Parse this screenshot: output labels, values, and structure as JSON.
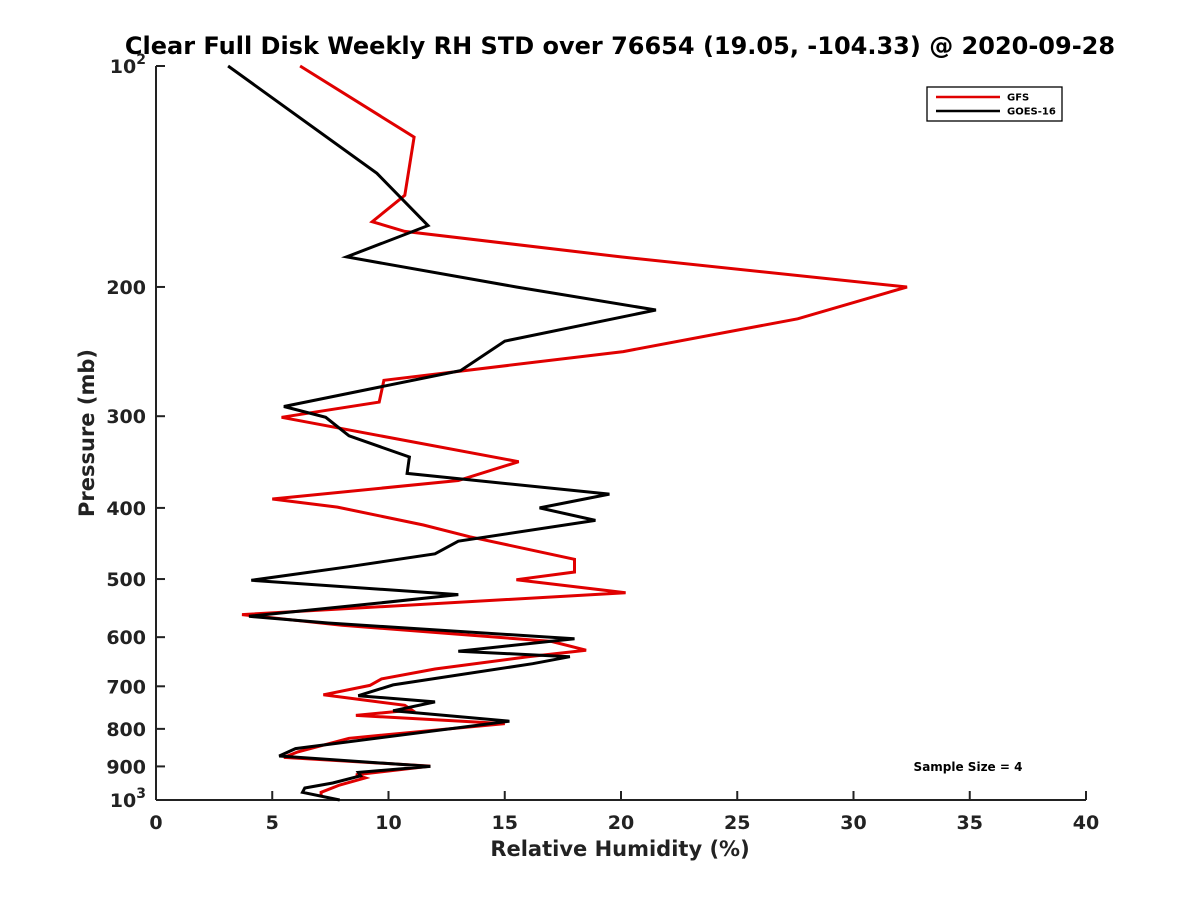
{
  "chart_data": {
    "type": "line",
    "title": "Clear Full Disk Weekly RH STD over 76654 (19.05, -104.33) @ 2020-09-28",
    "xlabel": "Relative Humidity (%)",
    "ylabel": "Pressure (mb)",
    "xlim": [
      0,
      40
    ],
    "ylim": [
      1000,
      100
    ],
    "yscale": "log",
    "x_ticks": [
      0,
      5,
      10,
      15,
      20,
      25,
      30,
      35,
      40
    ],
    "y_ticks": [
      {
        "value": 100,
        "label": "10",
        "exp": "2"
      },
      {
        "value": 200,
        "label": "200"
      },
      {
        "value": 300,
        "label": "300"
      },
      {
        "value": 400,
        "label": "400"
      },
      {
        "value": 500,
        "label": "500"
      },
      {
        "value": 600,
        "label": "600"
      },
      {
        "value": 700,
        "label": "700"
      },
      {
        "value": 800,
        "label": "800"
      },
      {
        "value": 900,
        "label": "900"
      },
      {
        "value": 1000,
        "label": "10",
        "exp": "3"
      }
    ],
    "legend_position": "top-right",
    "series": [
      {
        "name": "GFS",
        "color": "#e00000",
        "points": [
          [
            6.2,
            100
          ],
          [
            11.1,
            125
          ],
          [
            10.7,
            150
          ],
          [
            9.3,
            163
          ],
          [
            10.7,
            168
          ],
          [
            20.0,
            182
          ],
          [
            32.3,
            200
          ],
          [
            27.6,
            221
          ],
          [
            20.1,
            245
          ],
          [
            9.8,
            268
          ],
          [
            9.6,
            287
          ],
          [
            5.4,
            301
          ],
          [
            15.6,
            346
          ],
          [
            13.0,
            367
          ],
          [
            5.0,
            389
          ],
          [
            7.8,
            399
          ],
          [
            11.5,
            422
          ],
          [
            13.5,
            438
          ],
          [
            18.0,
            470
          ],
          [
            18.0,
            489
          ],
          [
            15.5,
            501
          ],
          [
            20.2,
            522
          ],
          [
            3.7,
            559
          ],
          [
            8.0,
            578
          ],
          [
            17.0,
            608
          ],
          [
            18.5,
            625
          ],
          [
            16.0,
            638
          ],
          [
            12.0,
            663
          ],
          [
            9.7,
            684
          ],
          [
            9.2,
            698
          ],
          [
            7.2,
            719
          ],
          [
            10.7,
            743
          ],
          [
            11.0,
            754
          ],
          [
            8.6,
            767
          ],
          [
            15.0,
            787
          ],
          [
            8.3,
            824
          ],
          [
            6.1,
            860
          ],
          [
            5.5,
            875
          ],
          [
            11.8,
            899
          ],
          [
            8.6,
            924
          ],
          [
            9.0,
            933
          ],
          [
            7.9,
            954
          ],
          [
            7.1,
            976
          ],
          [
            7.1,
            988
          ]
        ]
      },
      {
        "name": "GOES-16",
        "color": "#000000",
        "points": [
          [
            3.1,
            100
          ],
          [
            9.5,
            140
          ],
          [
            11.7,
            165
          ],
          [
            8.2,
            182
          ],
          [
            15.5,
            200
          ],
          [
            21.5,
            215
          ],
          [
            15.0,
            237
          ],
          [
            13.1,
            260
          ],
          [
            5.5,
            291
          ],
          [
            7.3,
            301
          ],
          [
            8.3,
            319
          ],
          [
            10.9,
            341
          ],
          [
            10.8,
            359
          ],
          [
            19.5,
            383
          ],
          [
            16.5,
            400
          ],
          [
            18.9,
            416
          ],
          [
            13.0,
            444
          ],
          [
            12.0,
            462
          ],
          [
            8.3,
            481
          ],
          [
            4.1,
            502
          ],
          [
            13.0,
            525
          ],
          [
            9.6,
            539
          ],
          [
            4.0,
            562
          ],
          [
            7.4,
            574
          ],
          [
            18.0,
            603
          ],
          [
            13.0,
            627
          ],
          [
            17.8,
            638
          ],
          [
            16.2,
            652
          ],
          [
            10.2,
            697
          ],
          [
            8.7,
            721
          ],
          [
            12.0,
            735
          ],
          [
            10.2,
            756
          ],
          [
            15.2,
            781
          ],
          [
            6.0,
            851
          ],
          [
            5.3,
            871
          ],
          [
            11.8,
            900
          ],
          [
            8.7,
            917
          ],
          [
            8.8,
            927
          ],
          [
            7.6,
            948
          ],
          [
            6.4,
            963
          ],
          [
            6.3,
            976
          ],
          [
            7.9,
            1000
          ]
        ]
      }
    ],
    "annotation": "Sample Size = 4"
  }
}
